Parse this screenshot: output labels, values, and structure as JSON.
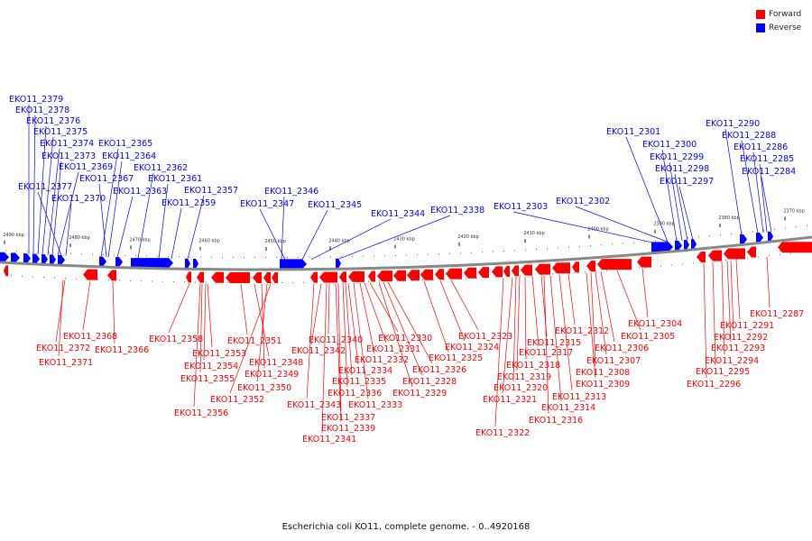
{
  "legend": {
    "forward": {
      "label": "Forward",
      "color": "#ff0000"
    },
    "reverse": {
      "label": "Reverse",
      "color": "#0000ff"
    }
  },
  "caption": "Escherichia coli KO11, complete genome. - 0..4920168",
  "ticks": [
    "2490 kbp",
    "2480 kbp",
    "2470 kbp",
    "2460 kbp",
    "2450 kbp",
    "2440 kbp",
    "2430 kbp",
    "2420 kbp",
    "2410 kbp",
    "2400 kbp",
    "2390 kbp",
    "2380 kbp",
    "2370 kbp"
  ],
  "reverse_labels": [
    "EKO11_2379",
    "EKO11_2378",
    "EKO11_2376",
    "EKO11_2375",
    "EKO11_2374",
    "EKO11_2373",
    "EKO11_2369",
    "EKO11_2377",
    "EKO11_2370",
    "EKO11_2365",
    "EKO11_2364",
    "EKO11_2367",
    "EKO11_2363",
    "EKO11_2362",
    "EKO11_2361",
    "EKO11_2359",
    "EKO11_2357",
    "EKO11_2346",
    "EKO11_2347",
    "EKO11_2345",
    "EKO11_2344",
    "EKO11_2338",
    "EKO11_2303",
    "EKO11_2302",
    "EKO11_2301",
    "EKO11_2300",
    "EKO11_2299",
    "EKO11_2298",
    "EKO11_2297",
    "EKO11_2290",
    "EKO11_2288",
    "EKO11_2286",
    "EKO11_2285",
    "EKO11_2284"
  ],
  "forward_labels": [
    "EKO11_2368",
    "EKO11_2372",
    "EKO11_2371",
    "EKO11_2366",
    "EKO11_2358",
    "EKO11_2353",
    "EKO11_2354",
    "EKO11_2355",
    "EKO11_2356",
    "EKO11_2351",
    "EKO11_2348",
    "EKO11_2349",
    "EKO11_2350",
    "EKO11_2352",
    "EKO11_2342",
    "EKO11_2343",
    "EKO11_2340",
    "EKO11_2337",
    "EKO11_2339",
    "EKO11_2341",
    "EKO11_2336",
    "EKO11_2334",
    "EKO11_2335",
    "EKO11_2333",
    "EKO11_2332",
    "EKO11_2331",
    "EKO11_2330",
    "EKO11_2329",
    "EKO11_2328",
    "EKO11_2326",
    "EKO11_2325",
    "EKO11_2324",
    "EKO11_2323",
    "EKO11_2322",
    "EKO11_2321",
    "EKO11_2320",
    "EKO11_2319",
    "EKO11_2318",
    "EKO11_2317",
    "EKO11_2315",
    "EKO11_2316",
    "EKO11_2314",
    "EKO11_2313",
    "EKO11_2312",
    "EKO11_2309",
    "EKO11_2308",
    "EKO11_2307",
    "EKO11_2306",
    "EKO11_2305",
    "EKO11_2304",
    "EKO11_2296",
    "EKO11_2295",
    "EKO11_2294",
    "EKO11_2293",
    "EKO11_2292",
    "EKO11_2291",
    "EKO11_2287"
  ]
}
